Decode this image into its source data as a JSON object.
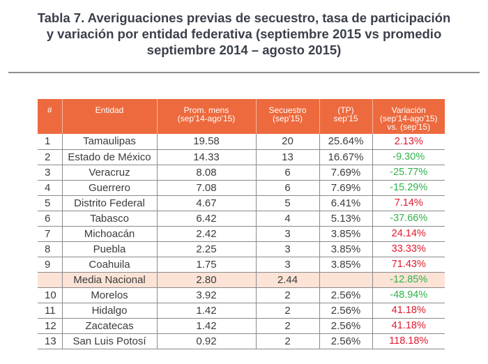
{
  "title": {
    "lines": [
      "Tabla 7. Averiguaciones previas de secuestro, tasa de participación",
      "y variación por entidad federativa (septiembre 2015 vs promedio",
      "septiembre 2014 – agosto 2015)"
    ]
  },
  "table": {
    "headers": [
      "#",
      "Entidad",
      "Prom. mens\n(sep'14-ago'15)",
      "Secuestro\n(sep'15)",
      "(TP)\nsep'15",
      "Variación\n(sep'14-ago'15)\nvs. (sep'15)"
    ],
    "rows": [
      {
        "num": "1",
        "entidad": "Tamaulipas",
        "prom": "19.58",
        "secuestro": "20",
        "tp": "25.64%",
        "variacion": "2.13%",
        "sign": "pos"
      },
      {
        "num": "2",
        "entidad": "Estado de México",
        "prom": "14.33",
        "secuestro": "13",
        "tp": "16.67%",
        "variacion": "-9.30%",
        "sign": "neg"
      },
      {
        "num": "3",
        "entidad": "Veracruz",
        "prom": "8.08",
        "secuestro": "6",
        "tp": "7.69%",
        "variacion": "-25.77%",
        "sign": "neg"
      },
      {
        "num": "4",
        "entidad": "Guerrero",
        "prom": "7.08",
        "secuestro": "6",
        "tp": "7.69%",
        "variacion": "-15.29%",
        "sign": "neg"
      },
      {
        "num": "5",
        "entidad": "Distrito Federal",
        "prom": "4.67",
        "secuestro": "5",
        "tp": "6.41%",
        "variacion": "7.14%",
        "sign": "pos"
      },
      {
        "num": "6",
        "entidad": "Tabasco",
        "prom": "6.42",
        "secuestro": "4",
        "tp": "5.13%",
        "variacion": "-37.66%",
        "sign": "neg"
      },
      {
        "num": "7",
        "entidad": "Michoacán",
        "prom": "2.42",
        "secuestro": "3",
        "tp": "3.85%",
        "variacion": "24.14%",
        "sign": "pos"
      },
      {
        "num": "8",
        "entidad": "Puebla",
        "prom": "2.25",
        "secuestro": "3",
        "tp": "3.85%",
        "variacion": "33.33%",
        "sign": "pos"
      },
      {
        "num": "9",
        "entidad": "Coahuila",
        "prom": "1.75",
        "secuestro": "3",
        "tp": "3.85%",
        "variacion": "71.43%",
        "sign": "pos"
      },
      {
        "num": "",
        "entidad": "Media Nacional",
        "prom": "2.80",
        "secuestro": "2.44",
        "tp": "",
        "variacion": "-12.85%",
        "sign": "neg",
        "highlight": true
      },
      {
        "num": "10",
        "entidad": "Morelos",
        "prom": "3.92",
        "secuestro": "2",
        "tp": "2.56%",
        "variacion": "-48.94%",
        "sign": "neg"
      },
      {
        "num": "11",
        "entidad": "Hidalgo",
        "prom": "1.42",
        "secuestro": "2",
        "tp": "2.56%",
        "variacion": "41.18%",
        "sign": "pos"
      },
      {
        "num": "12",
        "entidad": "Zacatecas",
        "prom": "1.42",
        "secuestro": "2",
        "tp": "2.56%",
        "variacion": "41.18%",
        "sign": "pos"
      },
      {
        "num": "13",
        "entidad": "San Luis Potosí",
        "prom": "0.92",
        "secuestro": "2",
        "tp": "2.56%",
        "variacion": "118.18%",
        "sign": "pos"
      }
    ]
  },
  "colors": {
    "header_bg": "#ec6a3e",
    "highlight_bg": "#fce3d6",
    "positive": "#e0182d",
    "negative": "#2eb34a"
  }
}
